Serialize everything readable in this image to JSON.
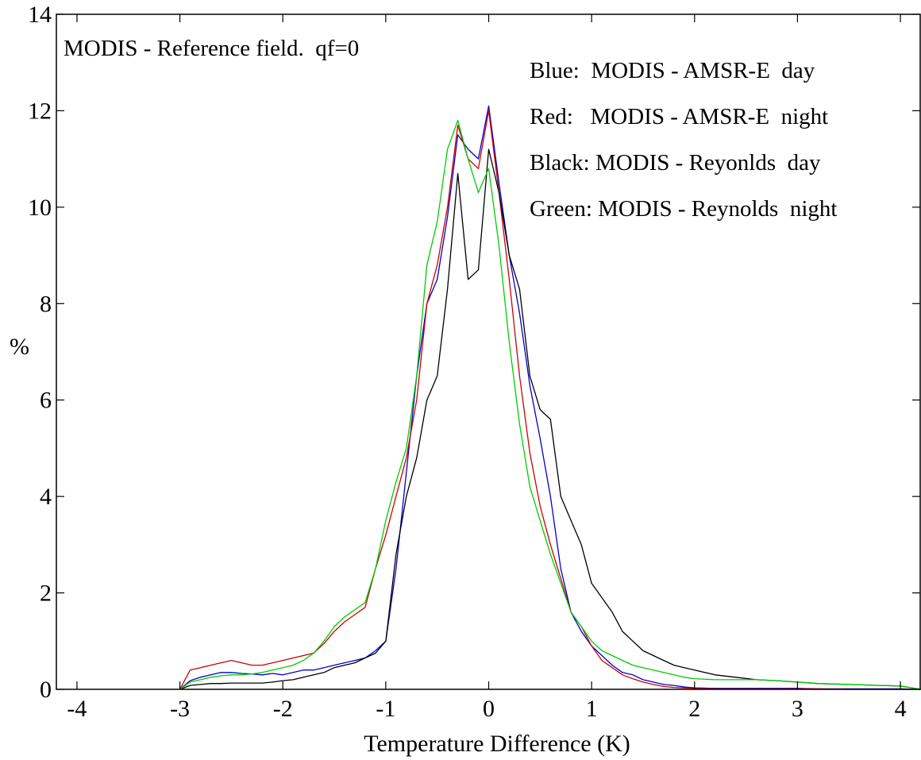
{
  "chart_data": {
    "type": "line",
    "title": "MODIS - Reference field.  qf=0",
    "xlabel": "Temperature Difference (K)",
    "ylabel": "%",
    "xlim": [
      -4.2,
      4.2
    ],
    "ylim": [
      0,
      14
    ],
    "xticks": [
      -4,
      -3,
      -2,
      -1,
      0,
      1,
      2,
      3,
      4
    ],
    "xtick_labels": [
      "-4",
      "-3",
      "-2",
      "-1",
      "0",
      "1",
      "2",
      "3",
      "4"
    ],
    "yticks": [
      0,
      2,
      4,
      6,
      8,
      10,
      12,
      14
    ],
    "ytick_labels": [
      "0",
      "2",
      "4",
      "6",
      "8",
      "10",
      "12",
      "14"
    ],
    "grid": false,
    "legend_lines": [
      "Blue:  MODIS - AMSR-E  day",
      "Red:   MODIS - AMSR-E  night",
      "Black: MODIS - Reyonlds  day",
      "Green: MODIS - Reynolds  night"
    ],
    "series": [
      {
        "color": "#0000cc",
        "x": [
          -3.0,
          -2.9,
          -2.8,
          -2.7,
          -2.6,
          -2.5,
          -2.4,
          -2.3,
          -2.2,
          -2.1,
          -2.0,
          -1.9,
          -1.8,
          -1.7,
          -1.6,
          -1.5,
          -1.4,
          -1.3,
          -1.2,
          -1.1,
          -1.0,
          -0.9,
          -0.8,
          -0.7,
          -0.6,
          -0.5,
          -0.4,
          -0.3,
          -0.2,
          -0.1,
          0.0,
          0.1,
          0.2,
          0.3,
          0.4,
          0.5,
          0.6,
          0.7,
          0.8,
          0.9,
          1.0,
          1.1,
          1.2,
          1.3,
          1.4,
          1.5,
          1.6,
          1.7,
          1.8,
          1.9,
          2.0,
          2.2,
          2.4,
          2.6,
          2.8,
          3.0,
          3.2,
          3.5,
          3.8,
          4.0,
          4.2
        ],
        "y": [
          0.0,
          0.18,
          0.25,
          0.3,
          0.35,
          0.35,
          0.33,
          0.32,
          0.3,
          0.33,
          0.3,
          0.35,
          0.4,
          0.4,
          0.45,
          0.5,
          0.55,
          0.6,
          0.65,
          0.8,
          1.0,
          2.5,
          4.5,
          6.5,
          8.0,
          8.5,
          9.8,
          11.5,
          11.2,
          11.0,
          12.1,
          10.5,
          9.0,
          7.8,
          6.3,
          5.2,
          4.0,
          2.5,
          1.6,
          1.2,
          0.9,
          0.7,
          0.5,
          0.35,
          0.3,
          0.2,
          0.15,
          0.1,
          0.08,
          0.05,
          0.03,
          0.02,
          0.02,
          0.02,
          0.02,
          0.02,
          0.01,
          0.01,
          0.01,
          0.01,
          0.0
        ]
      },
      {
        "color": "#cc0000",
        "x": [
          -3.0,
          -2.9,
          -2.8,
          -2.7,
          -2.6,
          -2.5,
          -2.4,
          -2.3,
          -2.2,
          -2.1,
          -2.0,
          -1.9,
          -1.8,
          -1.7,
          -1.6,
          -1.5,
          -1.4,
          -1.3,
          -1.2,
          -1.1,
          -1.0,
          -0.9,
          -0.8,
          -0.7,
          -0.6,
          -0.5,
          -0.4,
          -0.3,
          -0.2,
          -0.1,
          0.0,
          0.1,
          0.2,
          0.3,
          0.4,
          0.5,
          0.6,
          0.7,
          0.8,
          0.9,
          1.0,
          1.1,
          1.2,
          1.3,
          1.4,
          1.5,
          1.6,
          1.7,
          1.8,
          1.9,
          2.0,
          2.2,
          2.4,
          2.6,
          2.8,
          3.0,
          3.2,
          3.5,
          3.8,
          4.0,
          4.2
        ],
        "y": [
          0.0,
          0.4,
          0.45,
          0.5,
          0.55,
          0.6,
          0.55,
          0.5,
          0.5,
          0.55,
          0.6,
          0.65,
          0.7,
          0.75,
          0.95,
          1.2,
          1.4,
          1.55,
          1.7,
          2.5,
          3.2,
          4.0,
          4.8,
          6.0,
          8.0,
          8.8,
          10.0,
          11.7,
          11.0,
          10.8,
          12.0,
          10.3,
          8.5,
          6.5,
          4.9,
          3.8,
          3.0,
          2.3,
          1.6,
          1.3,
          0.9,
          0.6,
          0.45,
          0.3,
          0.22,
          0.15,
          0.1,
          0.06,
          0.04,
          0.03,
          0.02,
          0.01,
          0.01,
          0.01,
          0.01,
          0.01,
          0.01,
          0.0,
          0.0,
          0.0,
          0.0
        ]
      },
      {
        "color": "#000000",
        "x": [
          -3.0,
          -2.9,
          -2.8,
          -2.7,
          -2.6,
          -2.5,
          -2.4,
          -2.3,
          -2.2,
          -2.1,
          -2.0,
          -1.9,
          -1.8,
          -1.7,
          -1.6,
          -1.5,
          -1.4,
          -1.3,
          -1.2,
          -1.1,
          -1.0,
          -0.9,
          -0.8,
          -0.7,
          -0.6,
          -0.5,
          -0.4,
          -0.3,
          -0.2,
          -0.1,
          0.0,
          0.1,
          0.2,
          0.3,
          0.4,
          0.5,
          0.6,
          0.7,
          0.8,
          0.9,
          1.0,
          1.1,
          1.2,
          1.3,
          1.4,
          1.5,
          1.6,
          1.7,
          1.8,
          1.9,
          2.0,
          2.2,
          2.4,
          2.6,
          2.8,
          3.0,
          3.2,
          3.5,
          3.8,
          4.0,
          4.2
        ],
        "y": [
          0.0,
          0.08,
          0.1,
          0.12,
          0.12,
          0.13,
          0.13,
          0.13,
          0.13,
          0.15,
          0.18,
          0.2,
          0.25,
          0.3,
          0.35,
          0.45,
          0.5,
          0.55,
          0.65,
          0.75,
          1.0,
          2.8,
          4.0,
          4.8,
          6.0,
          6.5,
          8.3,
          10.7,
          8.5,
          8.7,
          11.2,
          10.3,
          9.0,
          8.3,
          6.5,
          5.8,
          5.6,
          4.0,
          3.5,
          3.0,
          2.2,
          1.9,
          1.6,
          1.2,
          1.0,
          0.8,
          0.7,
          0.6,
          0.5,
          0.45,
          0.4,
          0.3,
          0.25,
          0.2,
          0.18,
          0.15,
          0.12,
          0.1,
          0.08,
          0.07,
          0.0
        ]
      },
      {
        "color": "#00cc00",
        "x": [
          -3.0,
          -2.9,
          -2.8,
          -2.7,
          -2.6,
          -2.5,
          -2.4,
          -2.3,
          -2.2,
          -2.1,
          -2.0,
          -1.9,
          -1.8,
          -1.7,
          -1.6,
          -1.5,
          -1.4,
          -1.3,
          -1.2,
          -1.1,
          -1.0,
          -0.9,
          -0.8,
          -0.7,
          -0.6,
          -0.5,
          -0.4,
          -0.3,
          -0.2,
          -0.1,
          0.0,
          0.1,
          0.2,
          0.3,
          0.4,
          0.5,
          0.6,
          0.7,
          0.8,
          0.9,
          1.0,
          1.1,
          1.2,
          1.3,
          1.4,
          1.5,
          1.6,
          1.7,
          1.8,
          1.9,
          2.0,
          2.2,
          2.4,
          2.6,
          2.8,
          3.0,
          3.2,
          3.5,
          3.8,
          4.0,
          4.2
        ],
        "y": [
          0.0,
          0.15,
          0.2,
          0.25,
          0.28,
          0.3,
          0.3,
          0.32,
          0.35,
          0.4,
          0.45,
          0.5,
          0.6,
          0.75,
          1.0,
          1.3,
          1.5,
          1.65,
          1.8,
          2.5,
          3.5,
          4.3,
          5.0,
          6.5,
          8.8,
          9.7,
          11.2,
          11.8,
          11.0,
          10.3,
          10.8,
          9.2,
          7.2,
          5.5,
          4.2,
          3.5,
          2.8,
          2.2,
          1.6,
          1.3,
          1.0,
          0.8,
          0.7,
          0.6,
          0.5,
          0.45,
          0.4,
          0.35,
          0.3,
          0.25,
          0.22,
          0.2,
          0.2,
          0.2,
          0.18,
          0.15,
          0.12,
          0.1,
          0.08,
          0.07,
          0.0
        ]
      }
    ]
  }
}
